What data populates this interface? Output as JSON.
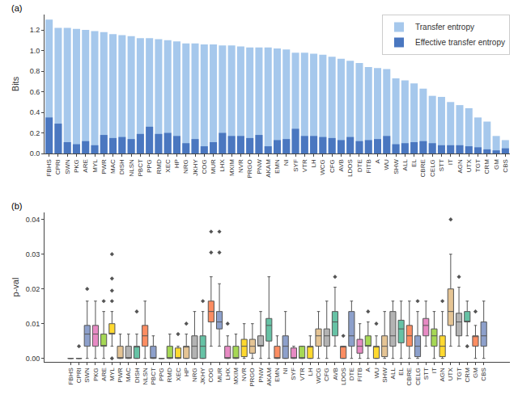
{
  "chart_data": [
    {
      "type": "bar",
      "title": "(a)",
      "y_label": "Bits",
      "stacked": false,
      "grid": false,
      "legend": "upper right",
      "categories": [
        "FBHS",
        "CPRI",
        "SWN",
        "PKG",
        "ARE",
        "MYL",
        "PWR",
        "MAC",
        "DISH",
        "NLSN",
        "PBCT",
        "PPG",
        "RMD",
        "XEC",
        "HP",
        "NRG",
        "JKHY",
        "COG",
        "MUR",
        "LHX",
        "MXIM",
        "NVR",
        "PRGO",
        "PNW",
        "AKAM",
        "EMN",
        "NI",
        "SYF",
        "VTR",
        "LH",
        "WCG",
        "CFG",
        "AVB",
        "LDOS",
        "DTE",
        "FITB",
        "A",
        "WU",
        "SHW",
        "ALL",
        "EL",
        "CBRE",
        "CELG",
        "STT",
        "IT",
        "AGN",
        "UTX",
        "TGT",
        "CRM",
        "GM",
        "CBS"
      ],
      "series": [
        {
          "name": "Transfer entropy",
          "color": "#a6c8ec",
          "values": [
            1.3,
            1.22,
            1.22,
            1.21,
            1.2,
            1.19,
            1.18,
            1.16,
            1.15,
            1.14,
            1.12,
            1.12,
            1.11,
            1.1,
            1.09,
            1.07,
            1.07,
            1.06,
            1.06,
            1.05,
            1.05,
            1.04,
            1.03,
            1.03,
            1.03,
            1.02,
            1.01,
            0.98,
            0.98,
            0.97,
            0.96,
            0.94,
            0.92,
            0.9,
            0.88,
            0.84,
            0.83,
            0.82,
            0.73,
            0.71,
            0.68,
            0.63,
            0.56,
            0.55,
            0.5,
            0.47,
            0.44,
            0.35,
            0.31,
            0.17,
            0.13
          ]
        },
        {
          "name": "Effective transfer entropy",
          "color": "#4a77c0",
          "values": [
            0.35,
            0.29,
            0.11,
            0.09,
            0.12,
            0.08,
            0.18,
            0.15,
            0.16,
            0.14,
            0.19,
            0.26,
            0.19,
            0.2,
            0.17,
            0.1,
            0.14,
            0.07,
            0.11,
            0.2,
            0.17,
            0.17,
            0.15,
            0.18,
            0.07,
            0.13,
            0.14,
            0.24,
            0.17,
            0.17,
            0.16,
            0.15,
            0.13,
            0.16,
            0.12,
            0.13,
            0.14,
            0.17,
            0.09,
            0.1,
            0.11,
            0.12,
            0.1,
            0.08,
            0.08,
            0.08,
            0.07,
            0.06,
            0.04,
            0.03,
            0.05
          ]
        }
      ],
      "ylim": [
        0,
        1.35
      ],
      "yticks": [
        {
          "value": 0,
          "label": "0.0"
        },
        {
          "value": 0.2,
          "label": "0.2"
        },
        {
          "value": 0.4,
          "label": "0.4"
        },
        {
          "value": 0.6,
          "label": "0.6"
        },
        {
          "value": 0.8,
          "label": "0.8"
        },
        {
          "value": 1.0,
          "label": "1.0"
        },
        {
          "value": 1.2,
          "label": "1.2"
        }
      ]
    },
    {
      "type": "box",
      "title": "(b)",
      "y_label": "p-val",
      "grid": false,
      "marker": "diamond",
      "categories": [
        "FBHS",
        "CPRI",
        "SWN",
        "PKG",
        "ARE",
        "MYL",
        "PWR",
        "MAC",
        "DISH",
        "NLSN",
        "PBCT",
        "PPG",
        "RMD",
        "XEC",
        "HP",
        "NRG",
        "JKHY",
        "COG",
        "MUR",
        "LHX",
        "MXIM",
        "NVR",
        "PRGO",
        "PNW",
        "AKAM",
        "EMN",
        "NI",
        "SYF",
        "VTR",
        "LH",
        "WCG",
        "CFG",
        "AVB",
        "LDOS",
        "DTE",
        "FITB",
        "A",
        "WU",
        "SHW",
        "ALL",
        "EL",
        "CBRE",
        "CELG",
        "STT",
        "IT",
        "AGN",
        "UTX",
        "TGT",
        "CRM",
        "GM",
        "CBS"
      ],
      "colors": [
        "#66c2a5",
        "#fc8d62",
        "#8da0cb",
        "#e78ac3",
        "#a6d854",
        "#ffd92f",
        "#e5c494",
        "#b3b3b3",
        "#66c2a5",
        "#fc8d62",
        "#8da0cb",
        "#e78ac3",
        "#a6d854",
        "#ffd92f",
        "#e5c494",
        "#b3b3b3",
        "#66c2a5",
        "#fc8d62",
        "#8da0cb",
        "#e78ac3",
        "#a6d854",
        "#ffd92f",
        "#e5c494",
        "#b3b3b3",
        "#66c2a5",
        "#fc8d62",
        "#8da0cb",
        "#e78ac3",
        "#a6d854",
        "#ffd92f",
        "#e5c494",
        "#b3b3b3",
        "#66c2a5",
        "#fc8d62",
        "#8da0cb",
        "#e78ac3",
        "#a6d854",
        "#ffd92f",
        "#e5c494",
        "#b3b3b3",
        "#66c2a5",
        "#fc8d62",
        "#8da0cb",
        "#e78ac3",
        "#a6d854",
        "#ffd92f",
        "#e5c494",
        "#b3b3b3",
        "#66c2a5",
        "#fc8d62",
        "#8da0cb"
      ],
      "lower": [
        0,
        0,
        0,
        0,
        0,
        0.0035,
        0,
        0,
        0,
        0,
        0,
        0,
        0,
        0,
        0,
        0,
        0,
        0.0035,
        0.0035,
        0,
        0,
        0,
        0,
        0,
        0,
        0,
        0,
        0,
        0,
        0,
        0,
        0,
        0.0035,
        0,
        0,
        0,
        0,
        0,
        0,
        0,
        0,
        0,
        0,
        0.0035,
        0,
        0,
        0.0035,
        0.0035,
        0.0065,
        0,
        0
      ],
      "q1": [
        0,
        0,
        0.0035,
        0.0035,
        0.0035,
        0.007,
        0,
        0,
        0,
        0.0035,
        0,
        0,
        0,
        0,
        0,
        0,
        0,
        0.0105,
        0.0085,
        0,
        0,
        0.0005,
        0.0015,
        0.0035,
        0.005,
        0,
        0,
        0,
        0,
        0,
        0.0035,
        0.0035,
        0.0065,
        0,
        0.0035,
        0.0015,
        0.0035,
        0,
        0.0005,
        0.0035,
        0.0045,
        0.0035,
        0.0005,
        0.0065,
        0.0035,
        0.0005,
        0.0095,
        0.0065,
        0.0105,
        0.0035,
        0.0035
      ],
      "median": [
        0,
        0,
        0.007,
        0.007,
        0.0035,
        0.007,
        0,
        0,
        0.0035,
        0.0065,
        0,
        0,
        0,
        0,
        0.0035,
        0.0035,
        0.0035,
        0.0135,
        0.0105,
        0,
        0,
        0.0035,
        0.0035,
        0.0035,
        0.0095,
        0,
        0.0035,
        0,
        0,
        0.0035,
        0.0065,
        0.0065,
        0.0105,
        0.0035,
        0.0065,
        0.0035,
        0.0035,
        0.0035,
        0.0035,
        0.0065,
        0.0085,
        0.0065,
        0.0035,
        0.0095,
        0.0065,
        0.0035,
        0.0135,
        0.0105,
        0.0105,
        0.0065,
        0.0065
      ],
      "q3": [
        0,
        0,
        0.0095,
        0.0095,
        0.007,
        0.01,
        0.0035,
        0.0035,
        0.0035,
        0.0095,
        0.0035,
        0,
        0.0035,
        0.003,
        0.0035,
        0.0065,
        0.0065,
        0.0165,
        0.0135,
        0.0035,
        0.0035,
        0.0055,
        0.0055,
        0.0065,
        0.0115,
        0.0035,
        0.0065,
        0.003,
        0.0035,
        0.0035,
        0.0085,
        0.0085,
        0.0135,
        0.0035,
        0.0135,
        0.0055,
        0.0065,
        0.0035,
        0.0065,
        0.0135,
        0.011,
        0.0095,
        0.0065,
        0.0115,
        0.0085,
        0.0065,
        0.02,
        0.013,
        0.0135,
        0.0065,
        0.0105
      ],
      "upper": [
        0,
        0,
        0.0165,
        0.0165,
        0.0135,
        0.0135,
        0.007,
        0.007,
        0.007,
        0.0165,
        0.0065,
        0,
        0.007,
        0.0035,
        0.007,
        0.0135,
        0.0135,
        0.0235,
        0.0215,
        0.0065,
        0.007,
        0.01,
        0.01,
        0.0135,
        0.0235,
        0.0065,
        0.0135,
        0.0035,
        0.0035,
        0.0065,
        0.0135,
        0.0165,
        0.0205,
        0.0035,
        0.0165,
        0.01,
        0.0105,
        0.0065,
        0.0135,
        0.0165,
        0.0165,
        0.0165,
        0.0135,
        0.0165,
        0.0135,
        0.0135,
        0.03,
        0.0205,
        0.0165,
        0.0095,
        0.0165
      ],
      "outliers": [
        [],
        [
          0.0035
        ],
        [
          0.02
        ],
        [],
        [
          0.0165
        ],
        [
          0,
          0.0165,
          0.0195,
          0.023,
          0.03
        ],
        [],
        [],
        [
          0.0135
        ],
        [],
        [],
        [],
        [],
        [
          0.007
        ],
        [
          0.01
        ],
        [],
        [
          0.0165
        ],
        [
          0.0305,
          0.0365
        ],
        [
          0.0305,
          0.0365
        ],
        [
          0.01
        ],
        [],
        [],
        [],
        [],
        [],
        [],
        [],
        [],
        [],
        [],
        [],
        [],
        [
          0.0235
        ],
        [
          0.0065
        ],
        [],
        [],
        [
          0.0135
        ],
        [
          0.01
        ],
        [],
        [],
        [],
        [],
        [
          0.0165
        ],
        [],
        [],
        [
          0.0165
        ],
        [
          0.04
        ],
        [
          0.0235
        ],
        [
          0.0035
        ],
        [
          0.0135
        ],
        []
      ],
      "ylim": [
        -0.001,
        0.042
      ],
      "yticks": [
        {
          "value": 0,
          "label": "0.00"
        },
        {
          "value": 0.01,
          "label": "0.01"
        },
        {
          "value": 0.02,
          "label": "0.02"
        },
        {
          "value": 0.03,
          "label": "0.03"
        },
        {
          "value": 0.04,
          "label": "0.04"
        }
      ]
    }
  ]
}
